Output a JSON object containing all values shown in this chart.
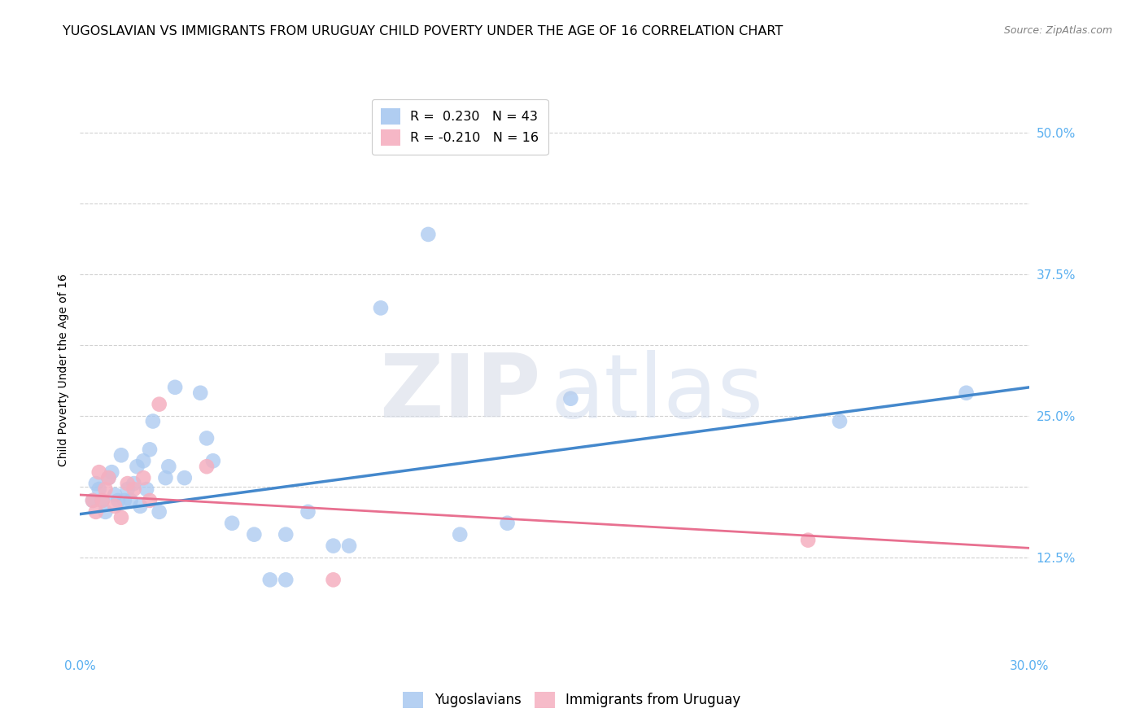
{
  "title": "YUGOSLAVIAN VS IMMIGRANTS FROM URUGUAY CHILD POVERTY UNDER THE AGE OF 16 CORRELATION CHART",
  "source": "Source: ZipAtlas.com",
  "ylabel": "Child Poverty Under the Age of 16",
  "xlim": [
    0.0,
    0.3
  ],
  "ylim": [
    0.04,
    0.54
  ],
  "blue_scatter_x": [
    0.004,
    0.005,
    0.006,
    0.007,
    0.008,
    0.009,
    0.01,
    0.011,
    0.012,
    0.013,
    0.014,
    0.015,
    0.016,
    0.017,
    0.018,
    0.019,
    0.02,
    0.021,
    0.022,
    0.023,
    0.025,
    0.027,
    0.028,
    0.03,
    0.033,
    0.038,
    0.04,
    0.042,
    0.048,
    0.055,
    0.06,
    0.065,
    0.065,
    0.072,
    0.08,
    0.085,
    0.095,
    0.11,
    0.12,
    0.135,
    0.155,
    0.24,
    0.28
  ],
  "blue_scatter_y": [
    0.175,
    0.19,
    0.185,
    0.175,
    0.165,
    0.195,
    0.2,
    0.18,
    0.175,
    0.215,
    0.175,
    0.185,
    0.175,
    0.19,
    0.205,
    0.17,
    0.21,
    0.185,
    0.22,
    0.245,
    0.165,
    0.195,
    0.205,
    0.275,
    0.195,
    0.27,
    0.23,
    0.21,
    0.155,
    0.145,
    0.105,
    0.105,
    0.145,
    0.165,
    0.135,
    0.135,
    0.345,
    0.41,
    0.145,
    0.155,
    0.265,
    0.245,
    0.27
  ],
  "pink_scatter_x": [
    0.004,
    0.005,
    0.006,
    0.007,
    0.008,
    0.009,
    0.011,
    0.013,
    0.015,
    0.017,
    0.02,
    0.022,
    0.025,
    0.04,
    0.08,
    0.23
  ],
  "pink_scatter_y": [
    0.175,
    0.165,
    0.2,
    0.175,
    0.185,
    0.195,
    0.17,
    0.16,
    0.19,
    0.185,
    0.195,
    0.175,
    0.26,
    0.205,
    0.105,
    0.14
  ],
  "blue_line_x": [
    0.0,
    0.3
  ],
  "blue_line_y": [
    0.163,
    0.275
  ],
  "pink_line_x": [
    0.0,
    0.3
  ],
  "pink_line_y": [
    0.18,
    0.133
  ],
  "blue_scatter_color": "#a8c8f0",
  "blue_line_color": "#4488cc",
  "pink_scatter_color": "#f5b0c0",
  "pink_line_color": "#e87090",
  "background_color": "#ffffff",
  "grid_color": "#cccccc",
  "title_fontsize": 11.5,
  "source_fontsize": 9,
  "axis_label_fontsize": 10,
  "tick_fontsize": 11,
  "tick_color": "#5bb0f0",
  "legend_r1": "R =  0.230   N = 43",
  "legend_r2": "R = -0.210   N = 16",
  "legend_bottom_labels": [
    "Yugoslavians",
    "Immigrants from Uruguay"
  ],
  "x_tick_positions": [
    0.0,
    0.05,
    0.1,
    0.15,
    0.2,
    0.25,
    0.3
  ],
  "x_tick_labels": [
    "0.0%",
    "",
    "",
    "",
    "",
    "",
    "30.0%"
  ],
  "y_tick_positions": [
    0.125,
    0.1875,
    0.25,
    0.3125,
    0.375,
    0.4375,
    0.5
  ],
  "y_tick_labels": [
    "12.5%",
    "",
    "25.0%",
    "",
    "37.5%",
    "",
    "50.0%"
  ]
}
